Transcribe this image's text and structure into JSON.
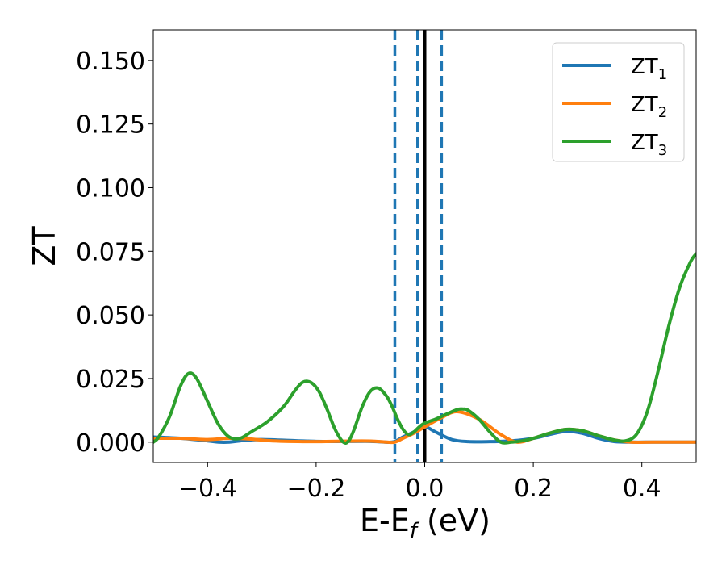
{
  "chart_data": {
    "type": "line",
    "xlabel_main": "E-E",
    "xlabel_sub": "f",
    "xlabel_unit": " (eV)",
    "ylabel": "ZT",
    "xlim": [
      -0.5,
      0.5
    ],
    "ylim": [
      -0.008,
      0.162
    ],
    "xticks": [
      -0.4,
      -0.2,
      0.0,
      0.2,
      0.4
    ],
    "xtick_labels": [
      "−0.4",
      "−0.2",
      "0.0",
      "0.2",
      "0.4"
    ],
    "yticks": [
      0.0,
      0.025,
      0.05,
      0.075,
      0.1,
      0.125,
      0.15
    ],
    "ytick_labels": [
      "0.000",
      "0.025",
      "0.050",
      "0.075",
      "0.100",
      "0.125",
      "0.150"
    ],
    "legend_position": "top-right",
    "vlines": [
      {
        "x": -0.055,
        "style": "dashed",
        "color": "#1f77b4"
      },
      {
        "x": -0.013,
        "style": "dashed",
        "color": "#1f77b4"
      },
      {
        "x": 0.0,
        "style": "solid",
        "color": "#000000"
      },
      {
        "x": 0.031,
        "style": "dashed",
        "color": "#1f77b4"
      }
    ],
    "series": [
      {
        "name_main": "ZT",
        "name_sub": "1",
        "color": "#1f77b4",
        "x": [
          -0.5,
          -0.45,
          -0.4,
          -0.38,
          -0.36,
          -0.34,
          -0.3,
          -0.2,
          -0.1,
          -0.06,
          -0.04,
          -0.02,
          0.0,
          0.02,
          0.05,
          0.08,
          0.12,
          0.16,
          0.2,
          0.23,
          0.26,
          0.29,
          0.32,
          0.35,
          0.38,
          0.42,
          0.46,
          0.5
        ],
        "y": [
          0.002,
          0.0015,
          0.0005,
          0.0,
          0.0,
          0.0005,
          0.001,
          0.0003,
          0.0003,
          0.0,
          0.002,
          0.004,
          0.006,
          0.004,
          0.001,
          0.0002,
          0.0002,
          0.0005,
          0.0015,
          0.003,
          0.0042,
          0.0035,
          0.0015,
          0.0002,
          0.0,
          0.0,
          0.0,
          0.0
        ]
      },
      {
        "name_main": "ZT",
        "name_sub": "2",
        "color": "#ff7f0e",
        "x": [
          -0.5,
          -0.45,
          -0.4,
          -0.36,
          -0.32,
          -0.28,
          -0.2,
          -0.14,
          -0.1,
          -0.07,
          -0.055,
          -0.04,
          -0.02,
          0.0,
          0.03,
          0.06,
          0.1,
          0.14,
          0.17,
          0.2,
          0.23,
          0.26,
          0.29,
          0.32,
          0.35,
          0.38,
          0.42,
          0.46,
          0.5
        ],
        "y": [
          0.0015,
          0.0015,
          0.001,
          0.0015,
          0.0012,
          0.0005,
          0.0002,
          0.0004,
          0.0004,
          0.0,
          0.0,
          0.0015,
          0.0035,
          0.006,
          0.0095,
          0.012,
          0.009,
          0.003,
          0.0,
          0.0015,
          0.0035,
          0.005,
          0.0045,
          0.0025,
          0.0008,
          0.0,
          0.0,
          0.0,
          0.0
        ]
      },
      {
        "name_main": "ZT",
        "name_sub": "3",
        "color": "#2ca02c",
        "x": [
          -0.5,
          -0.49,
          -0.47,
          -0.45,
          -0.435,
          -0.42,
          -0.4,
          -0.38,
          -0.36,
          -0.34,
          -0.32,
          -0.29,
          -0.26,
          -0.24,
          -0.225,
          -0.21,
          -0.195,
          -0.18,
          -0.165,
          -0.15,
          -0.14,
          -0.13,
          -0.115,
          -0.1,
          -0.085,
          -0.07,
          -0.06,
          -0.05,
          -0.04,
          -0.03,
          -0.02,
          -0.01,
          0.0,
          0.02,
          0.04,
          0.06,
          0.07,
          0.08,
          0.1,
          0.12,
          0.14,
          0.16,
          0.18,
          0.2,
          0.23,
          0.26,
          0.29,
          0.32,
          0.35,
          0.37,
          0.39,
          0.41,
          0.43,
          0.45,
          0.47,
          0.49,
          0.5
        ],
        "y": [
          0.0,
          0.002,
          0.01,
          0.022,
          0.027,
          0.025,
          0.016,
          0.007,
          0.002,
          0.0015,
          0.004,
          0.008,
          0.014,
          0.02,
          0.0235,
          0.0235,
          0.02,
          0.013,
          0.005,
          0.0,
          0.0005,
          0.005,
          0.014,
          0.02,
          0.0212,
          0.018,
          0.014,
          0.009,
          0.005,
          0.003,
          0.004,
          0.006,
          0.0075,
          0.009,
          0.011,
          0.0128,
          0.013,
          0.0125,
          0.009,
          0.004,
          0.0,
          0.0,
          0.0005,
          0.0015,
          0.0035,
          0.005,
          0.0045,
          0.0025,
          0.0008,
          0.0005,
          0.003,
          0.012,
          0.028,
          0.046,
          0.061,
          0.071,
          0.074
        ]
      }
    ]
  }
}
